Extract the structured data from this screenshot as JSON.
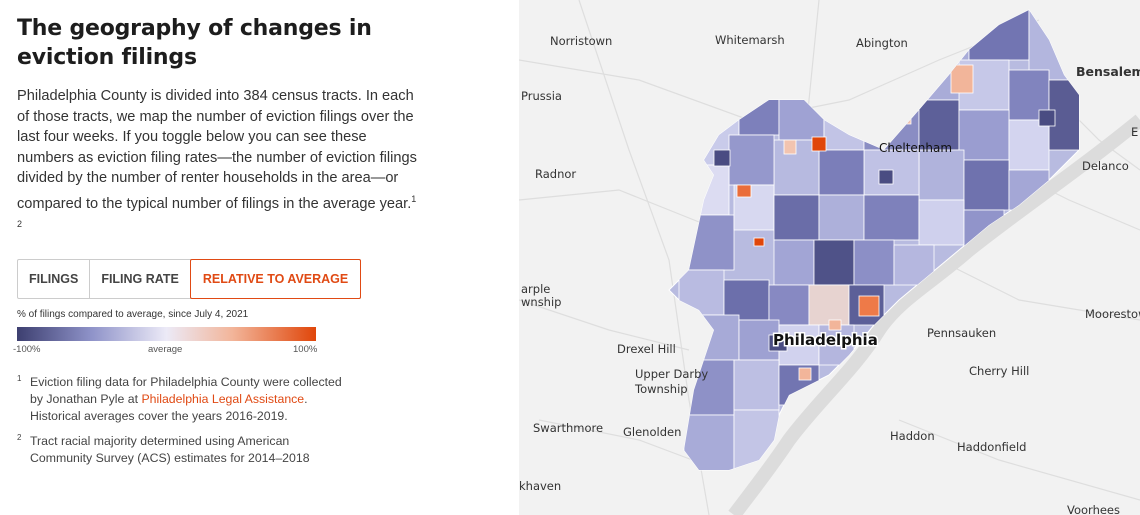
{
  "header": {
    "title": "The geography of changes in eviction filings",
    "intro": "Philadelphia County is divided into 384 census tracts. In each of those tracts, we map the number of eviction filings over the last four weeks. If you toggle below you can see these numbers as eviction filing rates—the number of eviction filings divided by the number of renter households in the area—or compared to the typical number of filings in the average year.",
    "intro_refs": "1 2"
  },
  "tabs": [
    {
      "label": "FILINGS",
      "active": false
    },
    {
      "label": "FILING RATE",
      "active": false
    },
    {
      "label": "RELATIVE TO AVERAGE",
      "active": true
    }
  ],
  "legend": {
    "title": "% of filings compared to average, since July 4, 2021",
    "min_label": "-100%",
    "mid_label": "average",
    "max_label": "100%",
    "colors": {
      "low": "#3d3f70",
      "mid": "#eceaf7",
      "high": "#e0460a"
    }
  },
  "notes": [
    {
      "num": "1",
      "text_before": "Eviction filing data for Philadelphia County were collected by Jonathan Pyle at ",
      "link": "Philadelphia Legal Assistance",
      "text_after": ". Historical averages cover the years 2016-2019."
    },
    {
      "num": "2",
      "text_before": "Tract racial majority determined using American Community Survey (ACS) estimates for 2014–2018",
      "link": "",
      "text_after": ""
    }
  ],
  "map": {
    "city_label": "Philadelphia",
    "places": [
      "Norristown",
      "Whitemarsh",
      "Abington",
      "Bensalem",
      "Prussia",
      "Cheltenham",
      "Delanco",
      "Radnor",
      "arple wnship",
      "Pennsauken",
      "Moorestow",
      "Drexel Hill",
      "Upper Darby Township",
      "Cherry Hill",
      "Swarthmore",
      "Glenolden",
      "Haddon",
      "Haddonfield",
      "khaven",
      "Voorhees",
      "E"
    ]
  }
}
